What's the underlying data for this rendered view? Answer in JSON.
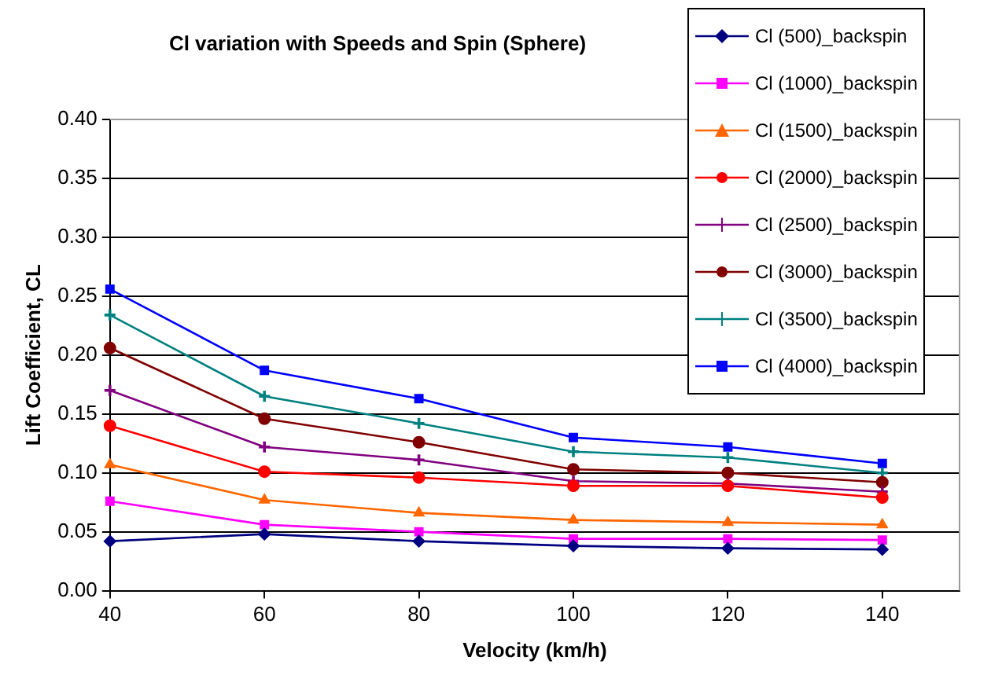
{
  "chart_data": {
    "type": "line",
    "title": "Cl variation with Speeds and Spin (Sphere)",
    "xlabel": "Velocity (km/h)",
    "ylabel": "Lift Coefficient, CL",
    "x": [
      40,
      60,
      80,
      100,
      120,
      140
    ],
    "xlim": [
      40,
      150
    ],
    "xticks": [
      40,
      60,
      80,
      100,
      120,
      140
    ],
    "ylim": [
      0,
      0.4
    ],
    "yticks": [
      {
        "value": 0,
        "label": "0.00"
      },
      {
        "value": 0.05,
        "label": "0.05"
      },
      {
        "value": 0.1,
        "label": "0.10"
      },
      {
        "value": 0.15,
        "label": "0.15"
      },
      {
        "value": 0.2,
        "label": "0.20"
      },
      {
        "value": 0.25,
        "label": "0.25"
      },
      {
        "value": 0.3,
        "label": "0.30"
      },
      {
        "value": 0.35,
        "label": "0.35"
      },
      {
        "value": 0.4,
        "label": "0.40"
      }
    ],
    "grid": "y",
    "legend": "top right",
    "line_style": "solid",
    "series": [
      {
        "name": "Cl (500)_backspin",
        "color": "#000080",
        "marker": "diamond",
        "values": [
          0.042,
          0.048,
          0.042,
          0.038,
          0.036,
          0.035
        ]
      },
      {
        "name": "Cl (1000)_backspin",
        "color": "#ff00ff",
        "marker": "square",
        "values": [
          0.076,
          0.056,
          0.05,
          0.044,
          0.044,
          0.043
        ]
      },
      {
        "name": "Cl (1500)_backspin",
        "color": "#ff6600",
        "marker": "triangle",
        "values": [
          0.107,
          0.077,
          0.066,
          0.06,
          0.058,
          0.056
        ]
      },
      {
        "name": "Cl (2000)_backspin",
        "color": "#ff0000",
        "marker": "circle",
        "values": [
          0.14,
          0.101,
          0.096,
          0.089,
          0.089,
          0.079
        ]
      },
      {
        "name": "Cl (2500)_backspin",
        "color": "#800080",
        "marker": "cross",
        "values": [
          0.17,
          0.122,
          0.111,
          0.093,
          0.091,
          0.084
        ]
      },
      {
        "name": "Cl (3000)_backspin",
        "color": "#800000",
        "marker": "circle",
        "values": [
          0.206,
          0.146,
          0.126,
          0.103,
          0.1,
          0.092
        ]
      },
      {
        "name": "Cl (3500)_backspin",
        "color": "#008080",
        "marker": "cross",
        "values": [
          0.234,
          0.165,
          0.142,
          0.118,
          0.113,
          0.1
        ]
      },
      {
        "name": "Cl (4000)_backspin",
        "color": "#0000ff",
        "marker": "square",
        "values": [
          0.256,
          0.187,
          0.163,
          0.13,
          0.122,
          0.108
        ]
      }
    ]
  }
}
